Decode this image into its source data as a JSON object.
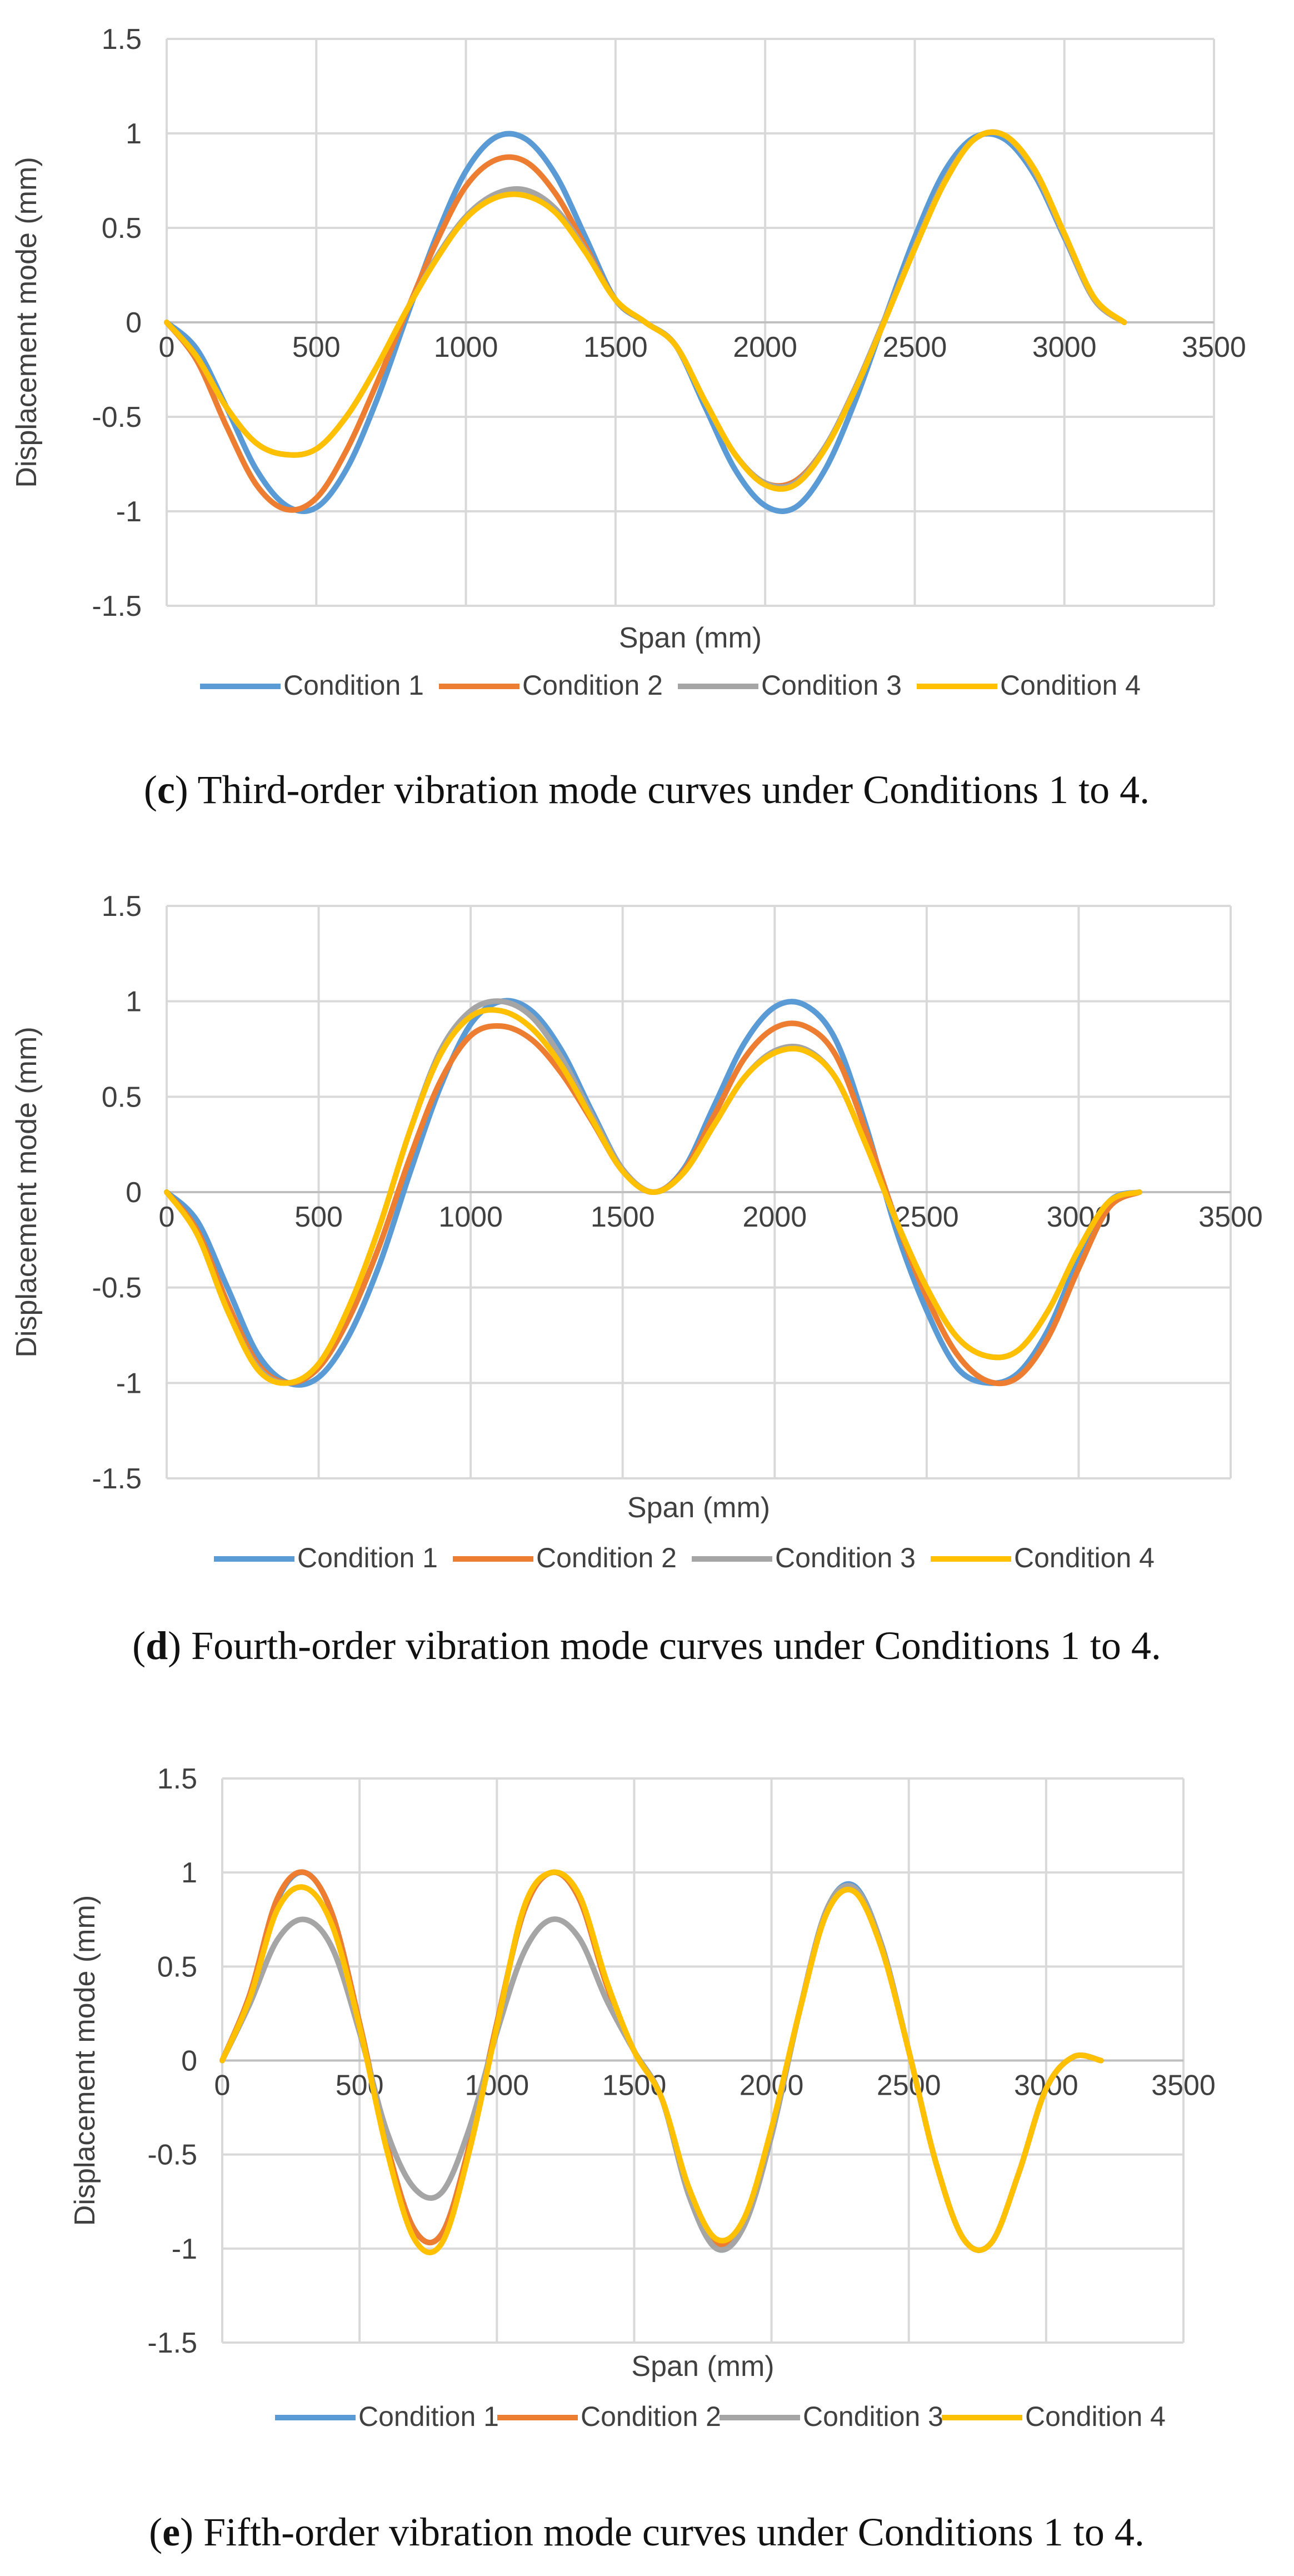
{
  "chart_data": [
    {
      "type": "line",
      "id": "c",
      "title": "",
      "xlabel": "Span (mm)",
      "ylabel": "Displacement mode (mm)",
      "xlim": [
        0,
        3500
      ],
      "ylim": [
        -1.5,
        1.5
      ],
      "xticks": [
        "0",
        "500",
        "1000",
        "1500",
        "2000",
        "2500",
        "3000",
        "3500"
      ],
      "yticks": [
        "1.5",
        "1",
        "0.5",
        "0",
        "-0.5",
        "-1",
        "-1.5"
      ],
      "grid": true,
      "legend_position": "bottom",
      "caption_letter": "c",
      "caption_text": " Third-order vibration mode curves under Conditions 1 to 4.",
      "series": [
        {
          "name": "Condition 1",
          "color": "#5b9bd5",
          "x": [
            0,
            100,
            200,
            300,
            400,
            500,
            600,
            700,
            800,
            900,
            1000,
            1100,
            1200,
            1300,
            1400,
            1500,
            1600,
            1700,
            1800,
            1900,
            2000,
            2100,
            2200,
            2300,
            2400,
            2500,
            2600,
            2700,
            2800,
            2900,
            3000,
            3100,
            3200
          ],
          "y": [
            0,
            -0.14,
            -0.45,
            -0.78,
            -0.97,
            -0.98,
            -0.78,
            -0.42,
            0.02,
            0.45,
            0.8,
            0.98,
            0.97,
            0.78,
            0.45,
            0.12,
            0,
            -0.12,
            -0.45,
            -0.78,
            -0.97,
            -0.98,
            -0.78,
            -0.42,
            0.02,
            0.45,
            0.8,
            0.98,
            0.97,
            0.78,
            0.45,
            0.12,
            0
          ]
        },
        {
          "name": "Condition 2",
          "color": "#ed7d31",
          "x": [
            0,
            100,
            200,
            300,
            400,
            500,
            600,
            700,
            800,
            900,
            1000,
            1100,
            1200,
            1300,
            1400,
            1500,
            1600,
            1700,
            1800,
            1900,
            2000,
            2100,
            2200,
            2300,
            2400,
            2500,
            2600,
            2700,
            2800,
            2900,
            3000,
            3100,
            3200
          ],
          "y": [
            0,
            -0.2,
            -0.55,
            -0.86,
            -0.99,
            -0.93,
            -0.68,
            -0.33,
            0.05,
            0.42,
            0.72,
            0.86,
            0.85,
            0.68,
            0.4,
            0.12,
            0,
            -0.12,
            -0.42,
            -0.7,
            -0.85,
            -0.84,
            -0.66,
            -0.35,
            0.02,
            0.4,
            0.75,
            0.97,
            0.99,
            0.8,
            0.46,
            0.12,
            0
          ]
        },
        {
          "name": "Condition 3",
          "color": "#a5a5a5",
          "x": [
            0,
            100,
            200,
            300,
            400,
            500,
            600,
            700,
            800,
            900,
            1000,
            1100,
            1200,
            1300,
            1400,
            1500,
            1600,
            1700,
            1800,
            1900,
            2000,
            2100,
            2200,
            2300,
            2400,
            2500,
            2600,
            2700,
            2800,
            2900,
            3000,
            3100,
            3200
          ],
          "y": [
            0,
            -0.18,
            -0.45,
            -0.64,
            -0.7,
            -0.67,
            -0.5,
            -0.24,
            0.06,
            0.34,
            0.56,
            0.68,
            0.7,
            0.6,
            0.38,
            0.12,
            0,
            -0.12,
            -0.42,
            -0.7,
            -0.85,
            -0.85,
            -0.66,
            -0.35,
            0.02,
            0.4,
            0.75,
            0.97,
            0.99,
            0.8,
            0.46,
            0.12,
            0
          ]
        },
        {
          "name": "Condition 4",
          "color": "#ffc000",
          "x": [
            0,
            100,
            200,
            300,
            400,
            500,
            600,
            700,
            800,
            900,
            1000,
            1100,
            1200,
            1300,
            1400,
            1500,
            1600,
            1700,
            1800,
            1900,
            2000,
            2100,
            2200,
            2300,
            2400,
            2500,
            2600,
            2700,
            2800,
            2900,
            3000,
            3100,
            3200
          ],
          "y": [
            0,
            -0.18,
            -0.45,
            -0.64,
            -0.7,
            -0.67,
            -0.5,
            -0.24,
            0.06,
            0.33,
            0.55,
            0.66,
            0.67,
            0.58,
            0.37,
            0.12,
            0,
            -0.12,
            -0.42,
            -0.7,
            -0.86,
            -0.86,
            -0.67,
            -0.36,
            0.01,
            0.39,
            0.74,
            0.97,
            0.99,
            0.81,
            0.47,
            0.13,
            0
          ]
        }
      ]
    },
    {
      "type": "line",
      "id": "d",
      "title": "",
      "xlabel": "Span (mm)",
      "ylabel": "Displacement mode (mm)",
      "xlim": [
        0,
        3500
      ],
      "ylim": [
        -1.5,
        1.5
      ],
      "xticks": [
        "0",
        "500",
        "1000",
        "1500",
        "2000",
        "2500",
        "3000",
        "3500"
      ],
      "yticks": [
        "1.5",
        "1",
        "0.5",
        "0",
        "-0.5",
        "-1",
        "-1.5"
      ],
      "grid": true,
      "legend_position": "bottom",
      "caption_letter": "d",
      "caption_text": " Fourth-order vibration mode curves under Conditions 1 to 4.",
      "series": [
        {
          "name": "Condition 1",
          "color": "#5b9bd5",
          "x": [
            0,
            100,
            200,
            300,
            400,
            500,
            600,
            700,
            800,
            900,
            1000,
            1100,
            1200,
            1300,
            1400,
            1500,
            1600,
            1700,
            1800,
            1900,
            2000,
            2100,
            2200,
            2300,
            2400,
            2500,
            2600,
            2700,
            2800,
            2900,
            3000,
            3100,
            3200
          ],
          "y": [
            0,
            -0.15,
            -0.5,
            -0.85,
            -1.0,
            -0.97,
            -0.75,
            -0.38,
            0.1,
            0.55,
            0.88,
            1.0,
            0.95,
            0.74,
            0.42,
            0.12,
            0,
            0.12,
            0.45,
            0.78,
            0.97,
            0.98,
            0.8,
            0.35,
            -0.2,
            -0.62,
            -0.92,
            -1.0,
            -0.95,
            -0.72,
            -0.35,
            -0.05,
            0
          ]
        },
        {
          "name": "Condition 2",
          "color": "#ed7d31",
          "x": [
            0,
            100,
            200,
            300,
            400,
            500,
            600,
            700,
            800,
            900,
            1000,
            1100,
            1200,
            1300,
            1400,
            1500,
            1600,
            1700,
            1800,
            1900,
            2000,
            2100,
            2200,
            2300,
            2400,
            2500,
            2600,
            2700,
            2800,
            2900,
            3000,
            3100,
            3200
          ],
          "y": [
            0,
            -0.2,
            -0.58,
            -0.9,
            -1.0,
            -0.92,
            -0.66,
            -0.28,
            0.18,
            0.58,
            0.82,
            0.87,
            0.8,
            0.62,
            0.37,
            0.11,
            0,
            0.11,
            0.4,
            0.7,
            0.86,
            0.87,
            0.72,
            0.32,
            -0.15,
            -0.55,
            -0.85,
            -0.99,
            -0.97,
            -0.76,
            -0.4,
            -0.08,
            0
          ]
        },
        {
          "name": "Condition 3",
          "color": "#a5a5a5",
          "x": [
            0,
            100,
            200,
            300,
            400,
            500,
            600,
            700,
            800,
            900,
            1000,
            1100,
            1200,
            1300,
            1400,
            1500,
            1600,
            1700,
            1800,
            1900,
            2000,
            2100,
            2200,
            2300,
            2400,
            2500,
            2600,
            2700,
            2800,
            2900,
            3000,
            3100,
            3200
          ],
          "y": [
            0,
            -0.22,
            -0.62,
            -0.92,
            -1.0,
            -0.9,
            -0.6,
            -0.18,
            0.32,
            0.74,
            0.95,
            1.0,
            0.92,
            0.7,
            0.4,
            0.12,
            0,
            0.1,
            0.35,
            0.6,
            0.74,
            0.75,
            0.6,
            0.25,
            -0.15,
            -0.5,
            -0.76,
            -0.86,
            -0.83,
            -0.62,
            -0.3,
            -0.05,
            0
          ]
        },
        {
          "name": "Condition 4",
          "color": "#ffc000",
          "x": [
            0,
            100,
            200,
            300,
            400,
            500,
            600,
            700,
            800,
            900,
            1000,
            1100,
            1200,
            1300,
            1400,
            1500,
            1600,
            1700,
            1800,
            1900,
            2000,
            2100,
            2200,
            2300,
            2400,
            2500,
            2600,
            2700,
            2800,
            2900,
            3000,
            3100,
            3200
          ],
          "y": [
            0,
            -0.22,
            -0.62,
            -0.93,
            -1.0,
            -0.9,
            -0.6,
            -0.18,
            0.32,
            0.72,
            0.92,
            0.95,
            0.86,
            0.66,
            0.38,
            0.11,
            0,
            0.1,
            0.35,
            0.6,
            0.73,
            0.74,
            0.6,
            0.25,
            -0.15,
            -0.5,
            -0.76,
            -0.86,
            -0.83,
            -0.62,
            -0.3,
            -0.05,
            0
          ]
        }
      ]
    },
    {
      "type": "line",
      "id": "e",
      "title": "",
      "xlabel": "Span (mm)",
      "ylabel": "Displacement mode (mm)",
      "xlim": [
        0,
        3500
      ],
      "ylim": [
        -1.5,
        1.5
      ],
      "xticks": [
        "0",
        "500",
        "1000",
        "1500",
        "2000",
        "2500",
        "3000",
        "3500"
      ],
      "yticks": [
        "1.5",
        "1",
        "0.5",
        "0",
        "-0.5",
        "-1",
        "-1.5"
      ],
      "grid": true,
      "legend_position": "bottom",
      "caption_letter": "e",
      "caption_text": " Fifth-order vibration mode curves under Conditions 1 to 4.",
      "series": [
        {
          "name": "Condition 1",
          "color": "#5b9bd5",
          "x": [
            0,
            100,
            200,
            300,
            400,
            500,
            600,
            700,
            800,
            900,
            1000,
            1100,
            1200,
            1300,
            1400,
            1500,
            1600,
            1700,
            1800,
            1900,
            2000,
            2100,
            2200,
            2300,
            2400,
            2500,
            2600,
            2700,
            2800,
            2900,
            3000,
            3100,
            3200
          ],
          "y": [
            0,
            0.35,
            0.85,
            1.0,
            0.78,
            0.2,
            -0.45,
            -0.9,
            -0.92,
            -0.45,
            0.2,
            0.8,
            1.0,
            0.86,
            0.4,
            0.05,
            -0.2,
            -0.72,
            -1.0,
            -0.88,
            -0.4,
            0.25,
            0.8,
            0.93,
            0.62,
            0.05,
            -0.55,
            -0.95,
            -0.97,
            -0.6,
            -0.15,
            0.02,
            0
          ]
        },
        {
          "name": "Condition 2",
          "color": "#ed7d31",
          "x": [
            0,
            100,
            200,
            300,
            400,
            500,
            600,
            700,
            800,
            900,
            1000,
            1100,
            1200,
            1300,
            1400,
            1500,
            1600,
            1700,
            1800,
            1900,
            2000,
            2100,
            2200,
            2300,
            2400,
            2500,
            2600,
            2700,
            2800,
            2900,
            3000,
            3100,
            3200
          ],
          "y": [
            0,
            0.35,
            0.86,
            1.0,
            0.78,
            0.2,
            -0.45,
            -0.9,
            -0.92,
            -0.45,
            0.2,
            0.8,
            1.0,
            0.86,
            0.4,
            0.05,
            -0.2,
            -0.7,
            -0.97,
            -0.86,
            -0.38,
            0.25,
            0.78,
            0.9,
            0.6,
            0.05,
            -0.55,
            -0.95,
            -0.97,
            -0.6,
            -0.15,
            0.02,
            0
          ]
        },
        {
          "name": "Condition 3",
          "color": "#a5a5a5",
          "x": [
            0,
            100,
            200,
            300,
            400,
            500,
            600,
            700,
            800,
            900,
            1000,
            1100,
            1200,
            1300,
            1400,
            1500,
            1600,
            1700,
            1800,
            1900,
            2000,
            2100,
            2200,
            2300,
            2400,
            2500,
            2600,
            2700,
            2800,
            2900,
            3000,
            3100,
            3200
          ],
          "y": [
            0,
            0.3,
            0.64,
            0.75,
            0.6,
            0.15,
            -0.38,
            -0.68,
            -0.7,
            -0.36,
            0.15,
            0.58,
            0.75,
            0.65,
            0.32,
            0.05,
            -0.2,
            -0.72,
            -1.0,
            -0.88,
            -0.4,
            0.25,
            0.8,
            0.92,
            0.62,
            0.05,
            -0.55,
            -0.95,
            -0.97,
            -0.6,
            -0.15,
            0.02,
            0
          ]
        },
        {
          "name": "Condition 4",
          "color": "#ffc000",
          "x": [
            0,
            100,
            200,
            300,
            400,
            500,
            600,
            700,
            800,
            900,
            1000,
            1100,
            1200,
            1300,
            1400,
            1500,
            1600,
            1700,
            1800,
            1900,
            2000,
            2100,
            2200,
            2300,
            2400,
            2500,
            2600,
            2700,
            2800,
            2900,
            3000,
            3100,
            3200
          ],
          "y": [
            0,
            0.33,
            0.8,
            0.92,
            0.72,
            0.18,
            -0.48,
            -0.95,
            -0.97,
            -0.48,
            0.18,
            0.82,
            1.0,
            0.88,
            0.42,
            0.05,
            -0.2,
            -0.68,
            -0.95,
            -0.84,
            -0.36,
            0.25,
            0.78,
            0.9,
            0.6,
            0.05,
            -0.55,
            -0.95,
            -0.97,
            -0.6,
            -0.15,
            0.02,
            0
          ]
        }
      ]
    }
  ]
}
